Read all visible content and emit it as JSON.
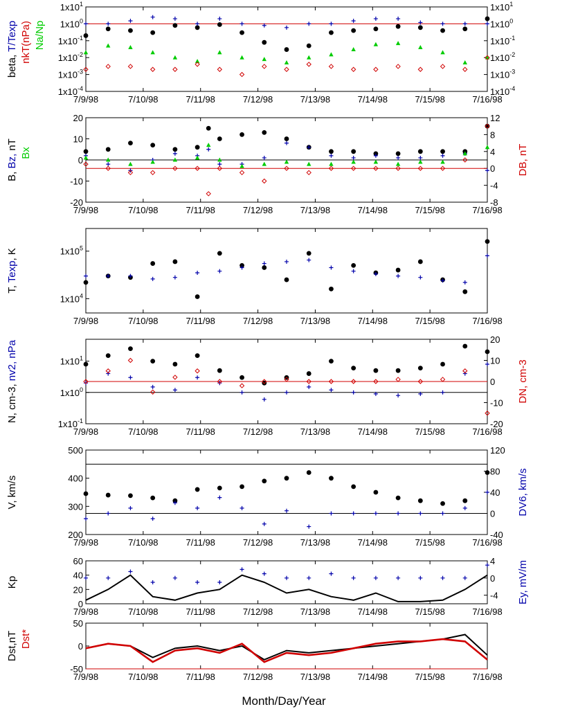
{
  "figure": {
    "xlabel": "Month/Day/Year",
    "x_ticks": [
      "7/9/98",
      "7/10/98",
      "7/11/98",
      "7/12/98",
      "7/13/98",
      "7/14/98",
      "7/15/98",
      "7/16/98"
    ],
    "colors": {
      "black": "#000000",
      "red": "#d00000",
      "blue": "#0000aa",
      "green": "#00cc00"
    }
  },
  "chart_data": [
    {
      "type": "scatter",
      "panel": 1,
      "ylabel_left_parts": [
        {
          "text": "beta, ",
          "color": "black"
        },
        {
          "text": "T/Texp",
          "color": "blue"
        }
      ],
      "ylabel_left2_parts": [
        {
          "text": "nkT(nPa)",
          "color": "red"
        }
      ],
      "ylabel_left3_parts": [
        {
          "text": "Na/Np",
          "color": "green"
        }
      ],
      "y_scale": "log",
      "ylim": [
        0.0001,
        10
      ],
      "y_ticks": [
        "1x10-4",
        "1x10-3",
        "1x10-2",
        "1x10-1",
        "1x100",
        "1x101"
      ],
      "y_ticks_right": [
        "1x10-4",
        "1x10-3",
        "1x10-2",
        "1x10-1",
        "1x100",
        "1x101"
      ],
      "hlines": [
        {
          "y": 1,
          "color": "red"
        }
      ],
      "x": [
        0,
        0.4,
        0.8,
        1.2,
        1.6,
        2.0,
        2.4,
        2.8,
        3.2,
        3.6,
        4.0,
        4.4,
        4.8,
        5.2,
        5.6,
        6.0,
        6.4,
        6.8,
        7.2
      ],
      "series": [
        {
          "color": "black",
          "marker": "dot",
          "values": [
            0.2,
            0.5,
            0.4,
            0.3,
            0.8,
            0.6,
            0.9,
            0.3,
            0.08,
            0.03,
            0.05,
            0.3,
            0.4,
            0.5,
            0.7,
            0.6,
            0.4,
            0.5,
            2.0
          ]
        },
        {
          "color": "blue",
          "marker": "plus",
          "values": [
            1.0,
            1.0,
            1.5,
            2.5,
            2.0,
            1.0,
            2.0,
            1.0,
            0.8,
            0.6,
            1.0,
            1.0,
            1.5,
            2.0,
            2.0,
            1.2,
            1.0,
            1.0,
            1.0
          ]
        },
        {
          "color": "green",
          "marker": "triangle",
          "values": [
            0.02,
            0.05,
            0.04,
            0.02,
            0.01,
            0.006,
            0.02,
            0.01,
            0.008,
            0.005,
            0.01,
            0.015,
            0.03,
            0.06,
            0.07,
            0.04,
            0.02,
            0.005,
            0.01
          ]
        },
        {
          "color": "red",
          "marker": "diamond",
          "values": [
            0.002,
            0.003,
            0.003,
            0.002,
            0.002,
            0.004,
            0.002,
            0.001,
            0.003,
            0.002,
            0.004,
            0.003,
            0.002,
            0.002,
            0.003,
            0.002,
            0.003,
            0.002,
            0.01
          ]
        }
      ]
    },
    {
      "type": "scatter",
      "panel": 2,
      "ylabel_left_parts": [
        {
          "text": "B, ",
          "color": "black"
        },
        {
          "text": "Bz, ",
          "color": "blue"
        },
        {
          "text": "nT",
          "color": "black"
        }
      ],
      "ylabel_left2_parts": [
        {
          "text": "Bx",
          "color": "green"
        }
      ],
      "ylabel_right_parts": [
        {
          "text": "DB, nT",
          "color": "red"
        }
      ],
      "ylim": [
        -20,
        20
      ],
      "y_ticks": [
        "20",
        "10",
        "0",
        "-10",
        "-20"
      ],
      "ylim_right": [
        -8,
        12
      ],
      "y_ticks_right": [
        "12",
        "8",
        "4",
        "0",
        "-4",
        "-8"
      ],
      "hlines": [
        {
          "y": 0,
          "color": "black"
        },
        {
          "y_right": 0,
          "color": "red"
        }
      ],
      "x": [
        0,
        0.4,
        0.8,
        1.2,
        1.6,
        2.0,
        2.2,
        2.4,
        2.8,
        3.2,
        3.6,
        4.0,
        4.4,
        4.8,
        5.2,
        5.6,
        6.0,
        6.4,
        6.8,
        7.2
      ],
      "series": [
        {
          "color": "black",
          "marker": "dot",
          "values": [
            4,
            5,
            8,
            7,
            5,
            6,
            15,
            10,
            12,
            13,
            10,
            6,
            4,
            4,
            3,
            3,
            4,
            4,
            4,
            16
          ]
        },
        {
          "color": "blue",
          "marker": "plus",
          "values": [
            2,
            -2,
            -5,
            0,
            3,
            2,
            5,
            -2,
            -2,
            1,
            8,
            6,
            2,
            1,
            2,
            1,
            1,
            2,
            3,
            -5
          ]
        },
        {
          "color": "green",
          "marker": "triangle",
          "values": [
            1,
            0,
            -2,
            -1,
            0,
            1,
            7,
            0,
            -3,
            -2,
            -1,
            -2,
            -2,
            -1,
            -1,
            -2,
            -1,
            -1,
            3,
            6
          ]
        },
        {
          "color": "red",
          "marker": "diamond",
          "values": [
            1,
            0,
            -1,
            -1,
            0,
            0,
            -6,
            0,
            -1,
            -3,
            0,
            -1,
            0,
            0,
            0,
            0,
            0,
            0,
            2,
            10
          ]
        }
      ]
    },
    {
      "type": "scatter",
      "panel": 3,
      "ylabel_left_parts": [
        {
          "text": "T, ",
          "color": "black"
        },
        {
          "text": "Texp",
          "color": "blue"
        },
        {
          "text": ", K",
          "color": "black"
        }
      ],
      "y_scale": "log",
      "ylim": [
        5000,
        300000
      ],
      "y_ticks": [
        "1x104",
        "1x105"
      ],
      "x": [
        0,
        0.4,
        0.8,
        1.2,
        1.6,
        2.0,
        2.4,
        2.8,
        3.2,
        3.6,
        4.0,
        4.4,
        4.8,
        5.2,
        5.6,
        6.0,
        6.4,
        6.8,
        7.2
      ],
      "series": [
        {
          "color": "black",
          "marker": "dot",
          "values": [
            22000,
            30000,
            28000,
            55000,
            60000,
            11000,
            90000,
            50000,
            45000,
            25000,
            90000,
            16000,
            50000,
            35000,
            40000,
            60000,
            25000,
            14000,
            160000
          ]
        },
        {
          "color": "blue",
          "marker": "plus",
          "values": [
            30000,
            30000,
            30000,
            26000,
            28000,
            35000,
            38000,
            45000,
            55000,
            60000,
            65000,
            45000,
            38000,
            33000,
            30000,
            28000,
            24000,
            22000,
            80000
          ]
        }
      ]
    },
    {
      "type": "scatter",
      "panel": 4,
      "ylabel_left_parts": [
        {
          "text": "N, cm-3, ",
          "color": "black"
        },
        {
          "text": "nv2, nPa",
          "color": "blue"
        }
      ],
      "ylabel_right_parts": [
        {
          "text": "DN, cm-3",
          "color": "red"
        }
      ],
      "y_scale": "log",
      "ylim": [
        0.1,
        50
      ],
      "y_ticks": [
        "1x101",
        "1x100",
        "1x10-1"
      ],
      "ylim_right": [
        -20,
        20
      ],
      "y_ticks_right": [
        "20",
        "10",
        "0",
        "-10",
        "-20"
      ],
      "hlines": [
        {
          "y": 1,
          "color": "black"
        },
        {
          "y_right": 0,
          "color": "red"
        }
      ],
      "x": [
        0,
        0.4,
        0.8,
        1.2,
        1.6,
        2.0,
        2.4,
        2.8,
        3.2,
        3.6,
        4.0,
        4.4,
        4.8,
        5.2,
        5.6,
        6.0,
        6.4,
        6.8,
        7.2
      ],
      "series": [
        {
          "color": "black",
          "marker": "dot",
          "values": [
            8,
            15,
            25,
            10,
            8,
            15,
            5,
            3,
            2,
            3,
            4,
            10,
            6,
            5,
            5,
            6,
            8,
            30,
            20
          ]
        },
        {
          "color": "blue",
          "marker": "plus",
          "values": [
            2,
            4,
            3,
            1.5,
            1.2,
            3,
            2,
            1,
            0.6,
            1.0,
            1.5,
            1.2,
            1.0,
            0.9,
            0.8,
            0.9,
            1.0,
            4,
            8
          ]
        },
        {
          "color": "red",
          "marker": "diamond",
          "values": [
            0,
            5,
            10,
            -5,
            2,
            5,
            0,
            -2,
            0,
            1,
            0,
            0,
            0,
            0,
            1,
            0,
            1,
            5,
            -15
          ]
        }
      ]
    },
    {
      "type": "scatter",
      "panel": 5,
      "ylabel_left_parts": [
        {
          "text": "V, km/s",
          "color": "black"
        }
      ],
      "ylabel_right_parts": [
        {
          "text": "DV6, km/s",
          "color": "blue"
        }
      ],
      "ylim": [
        200,
        500
      ],
      "y_ticks": [
        "500",
        "400",
        "300",
        "200"
      ],
      "ylim_right": [
        -40,
        120
      ],
      "y_ticks_right": [
        "120",
        "80",
        "40",
        "0",
        "-40"
      ],
      "hlines": [
        {
          "y": 450,
          "color": "black"
        },
        {
          "y_right": 0,
          "color": "black"
        }
      ],
      "x": [
        0,
        0.4,
        0.8,
        1.2,
        1.6,
        2.0,
        2.4,
        2.8,
        3.2,
        3.6,
        4.0,
        4.4,
        4.8,
        5.2,
        5.6,
        6.0,
        6.4,
        6.8,
        7.2
      ],
      "series": [
        {
          "color": "black",
          "marker": "dot",
          "values": [
            345,
            340,
            338,
            330,
            320,
            360,
            365,
            370,
            390,
            400,
            420,
            400,
            370,
            350,
            330,
            320,
            310,
            320,
            420
          ]
        },
        {
          "color": "blue",
          "marker": "plus",
          "values": [
            -10,
            0,
            10,
            -10,
            20,
            10,
            30,
            10,
            -20,
            5,
            -25,
            0,
            0,
            0,
            0,
            0,
            0,
            10,
            40
          ]
        }
      ]
    },
    {
      "type": "line",
      "panel": 6,
      "ylabel_left_parts": [
        {
          "text": "Kp",
          "color": "black"
        }
      ],
      "ylabel_right_parts": [
        {
          "text": "Ey,  mV/m",
          "color": "blue"
        }
      ],
      "ylim": [
        0,
        60
      ],
      "y_ticks": [
        "60",
        "40",
        "20",
        "0"
      ],
      "ylim_right": [
        -6,
        4
      ],
      "y_ticks_right": [
        "4",
        "0",
        "-4"
      ],
      "x": [
        0,
        0.4,
        0.8,
        1.2,
        1.6,
        2.0,
        2.4,
        2.8,
        3.2,
        3.6,
        4.0,
        4.4,
        4.8,
        5.2,
        5.6,
        6.0,
        6.4,
        6.8,
        7.2
      ],
      "series": [
        {
          "color": "black",
          "marker": "none",
          "values": [
            5,
            20,
            40,
            10,
            5,
            15,
            20,
            40,
            30,
            15,
            20,
            10,
            5,
            15,
            3,
            3,
            5,
            20,
            40
          ]
        },
        {
          "color": "blue",
          "marker": "plus",
          "values": [
            0,
            0,
            1.5,
            -1,
            0,
            -1,
            -1,
            2,
            1,
            0,
            0,
            1,
            0,
            0,
            0,
            0,
            0,
            0,
            3
          ]
        }
      ]
    },
    {
      "type": "line",
      "panel": 7,
      "ylabel_left_parts": [
        {
          "text": "Dst,nT",
          "color": "black"
        }
      ],
      "ylabel_left2_parts": [
        {
          "text": "Dst*",
          "color": "red"
        }
      ],
      "ylim": [
        -50,
        50
      ],
      "y_ticks": [
        "50",
        "0",
        "-50"
      ],
      "hlines": [
        {
          "y": -50,
          "color": "red"
        }
      ],
      "x": [
        0,
        0.4,
        0.8,
        1.2,
        1.6,
        2.0,
        2.4,
        2.8,
        3.2,
        3.6,
        4.0,
        4.4,
        4.8,
        5.2,
        5.6,
        6.0,
        6.4,
        6.8,
        7.2
      ],
      "series": [
        {
          "color": "black",
          "marker": "none",
          "values": [
            -5,
            5,
            0,
            -25,
            -5,
            0,
            -10,
            0,
            -30,
            -10,
            -15,
            -10,
            -5,
            0,
            5,
            10,
            15,
            25,
            -20
          ]
        },
        {
          "color": "red",
          "marker": "none",
          "values": [
            -5,
            5,
            0,
            -35,
            -10,
            -5,
            -15,
            5,
            -35,
            -15,
            -20,
            -15,
            -5,
            5,
            10,
            10,
            15,
            10,
            -30
          ]
        }
      ]
    }
  ]
}
